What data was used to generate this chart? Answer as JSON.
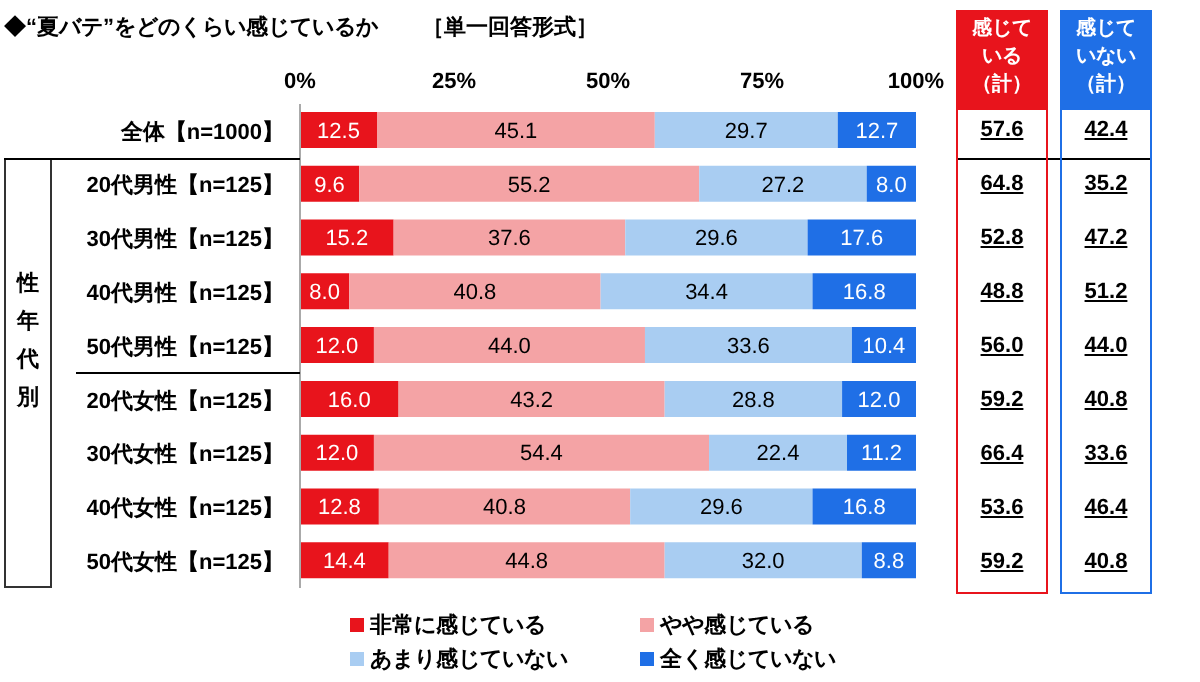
{
  "chart_data": {
    "type": "bar",
    "orientation": "horizontal",
    "stacked": true,
    "title": "◆“夏バテ”をどのくらい感じているか",
    "subtitle": "［単一回答形式］",
    "categories": [
      "全体【n=1000】",
      "20代男性【n=125】",
      "30代男性【n=125】",
      "40代男性【n=125】",
      "50代男性【n=125】",
      "20代女性【n=125】",
      "30代女性【n=125】",
      "40代女性【n=125】",
      "50代女性【n=125】"
    ],
    "series": [
      {
        "name": "非常に感じている",
        "color": "#e8141c",
        "values": [
          12.5,
          9.6,
          15.2,
          8.0,
          12.0,
          16.0,
          12.0,
          12.8,
          14.4
        ],
        "value_labels": [
          "12.5",
          "9.6",
          "15.2",
          "8.0",
          "12.0",
          "16.0",
          "12.0",
          "12.8",
          "14.4"
        ]
      },
      {
        "name": "やや感じている",
        "color": "#f4a3a5",
        "values": [
          45.1,
          55.2,
          37.6,
          40.8,
          44.0,
          43.2,
          54.4,
          40.8,
          44.8
        ],
        "value_labels": [
          "45.1",
          "55.2",
          "37.6",
          "40.8",
          "44.0",
          "43.2",
          "54.4",
          "40.8",
          "44.8"
        ]
      },
      {
        "name": "あまり感じていない",
        "color": "#a9cdf2",
        "values": [
          29.7,
          27.2,
          29.6,
          34.4,
          33.6,
          28.8,
          22.4,
          29.6,
          32.0
        ],
        "value_labels": [
          "29.7",
          "27.2",
          "29.6",
          "34.4",
          "33.6",
          "28.8",
          "22.4",
          "29.6",
          "32.0"
        ]
      },
      {
        "name": "全く感じていない",
        "color": "#1f6fe6",
        "values": [
          12.7,
          8.0,
          17.6,
          16.8,
          10.4,
          12.0,
          11.2,
          16.8,
          8.8
        ],
        "value_labels": [
          "12.7",
          "8.0",
          "17.6",
          "16.8",
          "10.4",
          "12.0",
          "11.2",
          "16.8",
          "8.8"
        ]
      }
    ],
    "xlim": [
      0,
      100
    ],
    "xticks": [
      {
        "value": 0,
        "label": "0%"
      },
      {
        "value": 25,
        "label": "25%"
      },
      {
        "value": 50,
        "label": "50%"
      },
      {
        "value": 75,
        "label": "75%"
      },
      {
        "value": 100,
        "label": "100%"
      }
    ],
    "grid": false,
    "legend": "bottom",
    "annotations": [
      "性年代別",
      "感じている（計）",
      "感じていない（計）",
      "57.6",
      "42.4",
      "64.8",
      "35.2",
      "52.8",
      "47.2",
      "48.8",
      "51.2",
      "56.0",
      "44.0",
      "59.2",
      "40.8",
      "66.4",
      "33.6",
      "53.6",
      "46.4",
      "59.2",
      "40.8"
    ]
  }
}
